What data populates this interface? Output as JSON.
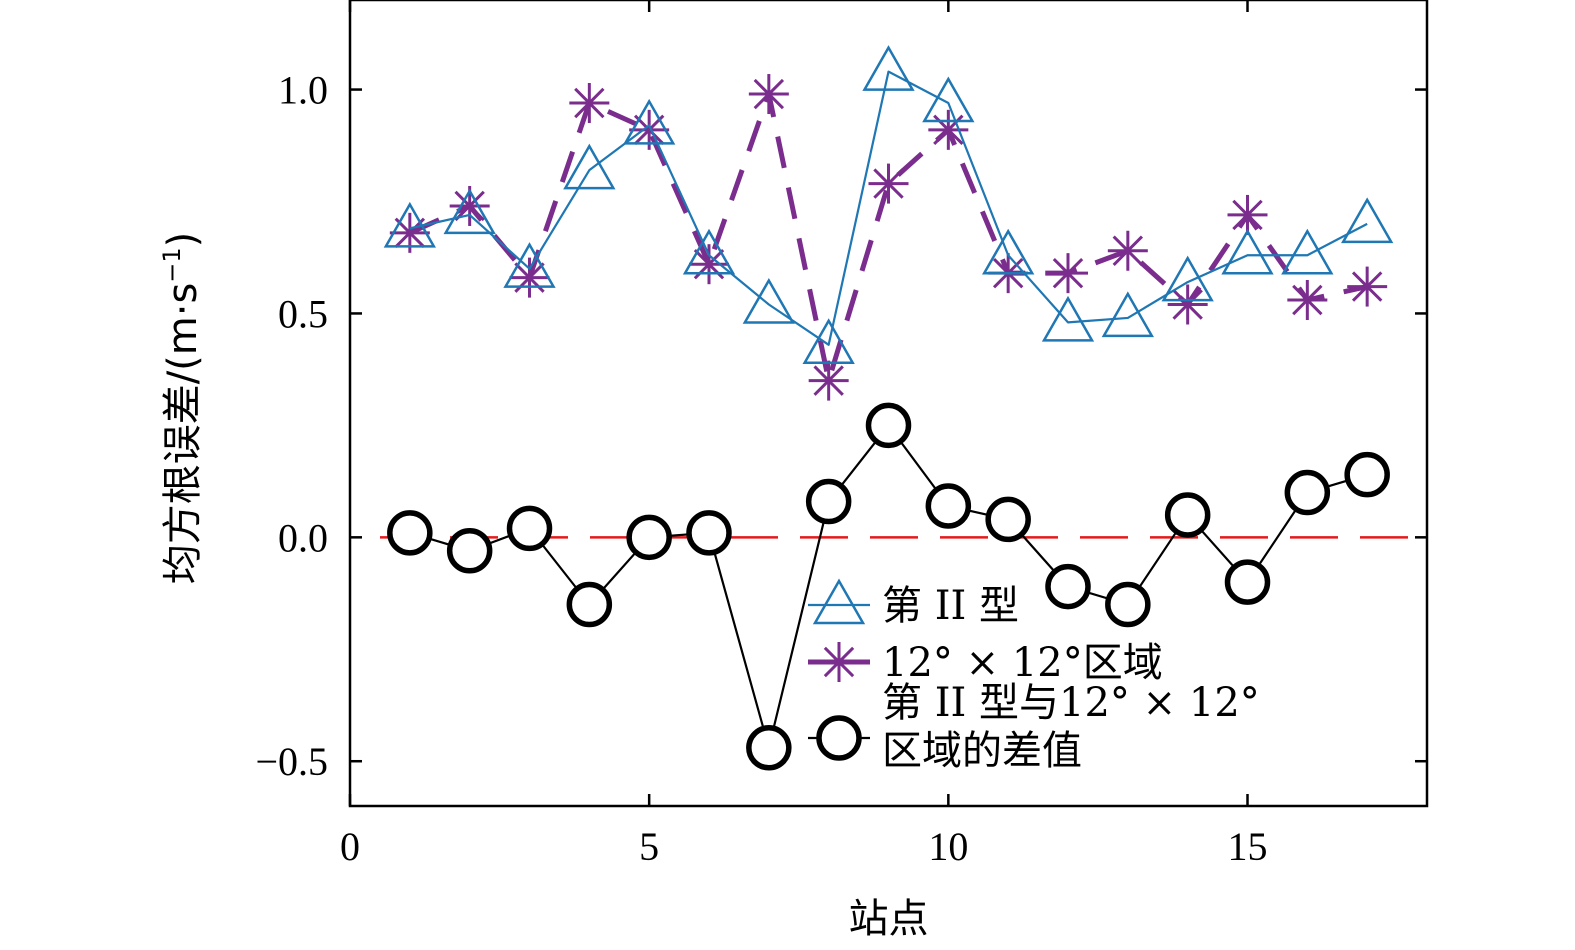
{
  "chart_data": {
    "type": "line",
    "xlabel": "站点",
    "ylabel": "均方根误差/(m·s",
    "ylabel_sup": "−1",
    "ylabel_close": ")",
    "xlim": [
      0,
      18
    ],
    "ylim": [
      -0.6,
      1.2
    ],
    "xticks": [
      0,
      5,
      10,
      15
    ],
    "xtick_labels": [
      "0",
      "5",
      "10",
      "15"
    ],
    "yticks": [
      -0.5,
      0.0,
      0.5,
      1.0
    ],
    "ytick_labels": [
      "−0.5",
      "0.0",
      "0.5",
      "1.0"
    ],
    "grid": false,
    "legend_position": "lower-right",
    "series": [
      {
        "name": "第 II 型",
        "marker": "triangle",
        "line_style": "solid",
        "color": "#1f77b4",
        "x": [
          1,
          2,
          3,
          4,
          5,
          6,
          7,
          8,
          9,
          10,
          11,
          12,
          13,
          14,
          15,
          16,
          17
        ],
        "y": [
          0.69,
          0.72,
          0.6,
          0.82,
          0.92,
          0.63,
          0.52,
          0.43,
          1.04,
          0.97,
          0.63,
          0.48,
          0.49,
          0.57,
          0.63,
          0.63,
          0.7
        ]
      },
      {
        "name": "12° × 12°区域",
        "marker": "star",
        "line_style": "dashed",
        "color": "#7b2d8e",
        "x": [
          1,
          2,
          3,
          4,
          5,
          6,
          7,
          8,
          9,
          10,
          11,
          12,
          13,
          14,
          15,
          16,
          17
        ],
        "y": [
          0.68,
          0.74,
          0.58,
          0.97,
          0.91,
          0.61,
          0.99,
          0.35,
          0.79,
          0.91,
          0.59,
          0.59,
          0.64,
          0.52,
          0.72,
          0.53,
          0.56
        ]
      },
      {
        "name_lines": [
          "第 II 型与12° × 12°",
          "区域的差值"
        ],
        "marker": "circle",
        "line_style": "solid",
        "color": "#000000",
        "x": [
          1,
          2,
          3,
          4,
          5,
          6,
          7,
          8,
          9,
          10,
          11,
          12,
          13,
          14,
          15,
          16,
          17
        ],
        "y": [
          0.01,
          -0.03,
          0.02,
          -0.15,
          0.0,
          0.01,
          -0.47,
          0.08,
          0.25,
          0.07,
          0.04,
          -0.11,
          -0.15,
          0.05,
          -0.1,
          0.1,
          0.14
        ]
      }
    ],
    "reference_line": {
      "y": 0.0,
      "color": "#e41a1c",
      "line_style": "dashed"
    }
  }
}
